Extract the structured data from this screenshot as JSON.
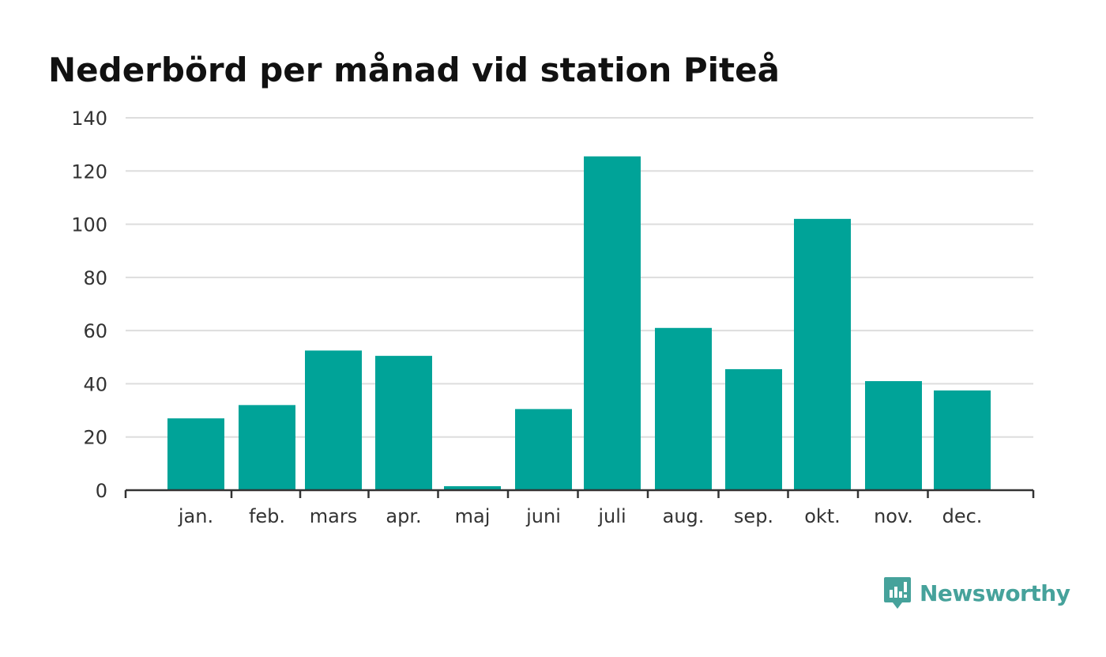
{
  "chart_data": {
    "type": "bar",
    "title": "Nederbörd per månad vid station Piteå",
    "categories": [
      "jan.",
      "feb.",
      "mars",
      "apr.",
      "maj",
      "juni",
      "juli",
      "aug.",
      "sep.",
      "okt.",
      "nov.",
      "dec."
    ],
    "values": [
      27,
      32,
      52.5,
      50.5,
      1.5,
      30.5,
      125.5,
      61,
      45.5,
      102,
      41,
      37.5
    ],
    "xlabel": "",
    "ylabel": "",
    "ylim": [
      0,
      140
    ],
    "yticks": [
      0,
      20,
      40,
      60,
      80,
      100,
      120,
      140
    ],
    "grid": true,
    "bar_color": "#00a398"
  },
  "brand": {
    "name": "Newsworthy",
    "color": "#46a29b"
  }
}
